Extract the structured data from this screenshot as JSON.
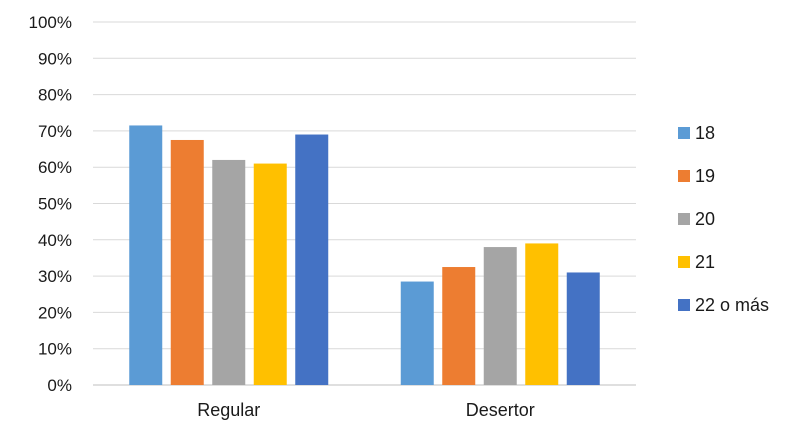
{
  "chart_data": {
    "type": "bar",
    "categories": [
      "Regular",
      "Desertor"
    ],
    "series": [
      {
        "name": "18",
        "color": "#5b9bd5",
        "values": [
          0.715,
          0.285
        ]
      },
      {
        "name": "19",
        "color": "#ed7d31",
        "values": [
          0.675,
          0.325
        ]
      },
      {
        "name": "20",
        "color": "#a5a5a5",
        "values": [
          0.62,
          0.38
        ]
      },
      {
        "name": "21",
        "color": "#ffc000",
        "values": [
          0.61,
          0.39
        ]
      },
      {
        "name": "22 o más",
        "color": "#4472c4",
        "values": [
          0.69,
          0.31
        ]
      }
    ],
    "ylim": [
      0,
      1
    ],
    "yticks": [
      0,
      0.1,
      0.2,
      0.3,
      0.4,
      0.5,
      0.6,
      0.7,
      0.8,
      0.9,
      1.0
    ],
    "ytick_labels": [
      "0%",
      "10%",
      "20%",
      "30%",
      "40%",
      "50%",
      "60%",
      "70%",
      "80%",
      "90%",
      "100%"
    ],
    "grid": true,
    "legend_position": "right"
  }
}
